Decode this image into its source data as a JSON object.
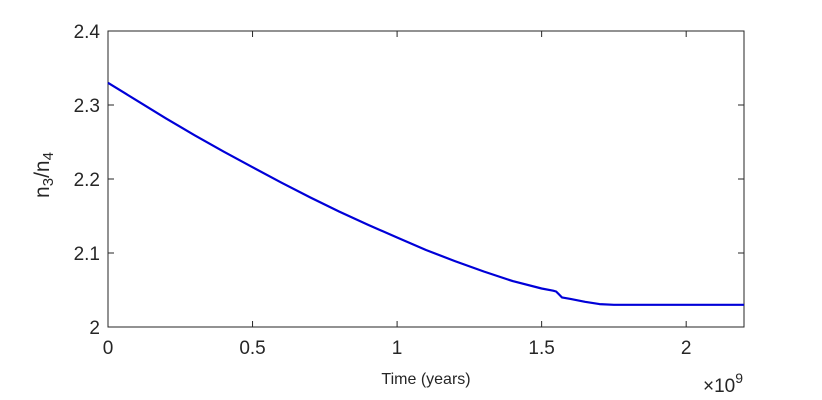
{
  "chart_data": {
    "type": "line",
    "title": "",
    "xlabel": "Time (years)",
    "ylabel": {
      "base": "n",
      "sub1": "3",
      "sep": "/n",
      "sub2": "4"
    },
    "x_multiplier": {
      "symbol": "×10",
      "exponent": "9"
    },
    "xlim": [
      0,
      2.2
    ],
    "ylim": [
      2.0,
      2.4
    ],
    "x_ticks": [
      0,
      0.5,
      1,
      1.5,
      2
    ],
    "x_tick_labels": [
      "0",
      "0.5",
      "1",
      "1.5",
      "2"
    ],
    "y_ticks": [
      2.0,
      2.1,
      2.2,
      2.3,
      2.4
    ],
    "y_tick_labels": [
      "2",
      "2.1",
      "2.2",
      "2.3",
      "2.4"
    ],
    "grid": false,
    "series": [
      {
        "color": "#0000d8",
        "x": [
          0,
          0.05,
          0.1,
          0.2,
          0.3,
          0.4,
          0.5,
          0.6,
          0.7,
          0.8,
          0.9,
          1.0,
          1.1,
          1.2,
          1.3,
          1.4,
          1.5,
          1.54,
          1.55,
          1.56,
          1.57,
          1.6,
          1.65,
          1.7,
          1.75,
          1.8,
          2.0,
          2.2
        ],
        "y": [
          2.33,
          2.318,
          2.306,
          2.282,
          2.259,
          2.237,
          2.216,
          2.195,
          2.175,
          2.156,
          2.138,
          2.121,
          2.104,
          2.089,
          2.075,
          2.062,
          2.052,
          2.049,
          2.048,
          2.044,
          2.04,
          2.038,
          2.034,
          2.031,
          2.03,
          2.03,
          2.03,
          2.03
        ]
      }
    ]
  }
}
